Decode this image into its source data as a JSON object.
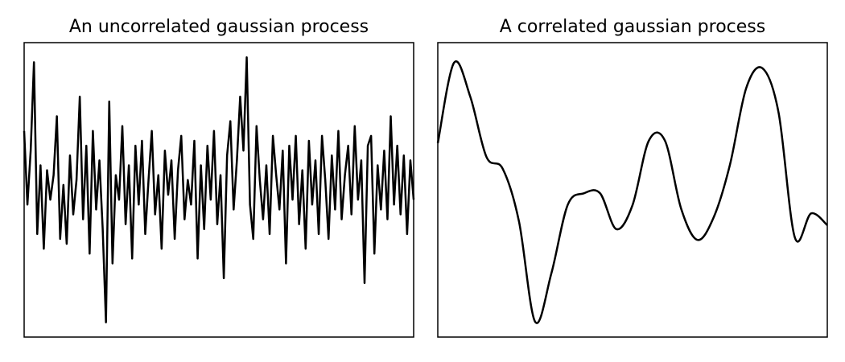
{
  "chart_data": [
    {
      "type": "line",
      "title": "An uncorrelated gaussian process",
      "color": "#000000",
      "ylim": [
        -3,
        3
      ],
      "values": [
        1.2,
        -0.3,
        0.8,
        2.6,
        -0.9,
        0.5,
        -1.2,
        0.4,
        -0.2,
        0.3,
        1.5,
        -1.0,
        0.1,
        -1.1,
        0.7,
        -0.5,
        0.2,
        1.9,
        -0.6,
        0.9,
        -1.3,
        1.2,
        -0.4,
        0.6,
        -0.8,
        -2.7,
        1.8,
        -1.5,
        0.3,
        -0.2,
        1.3,
        -0.7,
        0.5,
        -1.4,
        0.9,
        -0.3,
        1.0,
        -0.9,
        0.2,
        1.2,
        -0.5,
        0.3,
        -1.2,
        0.8,
        -0.1,
        0.6,
        -1.0,
        0.4,
        1.1,
        -0.6,
        0.2,
        -0.3,
        1.0,
        -1.4,
        0.5,
        -0.8,
        0.9,
        -0.2,
        1.2,
        -0.7,
        0.3,
        -1.8,
        0.7,
        1.4,
        -0.4,
        0.6,
        1.9,
        0.8,
        2.7,
        -0.3,
        -1.0,
        1.3,
        0.2,
        -0.6,
        0.5,
        -0.9,
        1.1,
        0.3,
        -0.4,
        0.8,
        -1.5,
        0.9,
        -0.2,
        1.1,
        -0.7,
        0.4,
        -1.2,
        1.0,
        -0.3,
        0.6,
        -0.9,
        1.1,
        0.2,
        -1.0,
        0.7,
        -0.4,
        1.2,
        -0.6,
        0.3,
        0.9,
        -0.5,
        1.3,
        -0.2,
        0.6,
        -1.9,
        0.9,
        1.1,
        -1.3,
        0.5,
        -0.4,
        0.8,
        -0.6,
        1.5,
        -0.3,
        0.9,
        -0.5,
        0.7,
        -0.9,
        0.6,
        -0.2
      ]
    },
    {
      "type": "smooth",
      "title": "A correlated gaussian process",
      "color": "#000000",
      "ylim": [
        -3,
        3
      ],
      "values": [
        0.95,
        2.59,
        1.9,
        0.67,
        0.43,
        -0.64,
        -2.69,
        -1.7,
        -0.31,
        -0.07,
        -0.07,
        -0.8,
        -0.31,
        1.0,
        1.0,
        -0.39,
        -1.02,
        -0.56,
        0.51,
        2.07,
        2.48,
        1.57,
        -0.97,
        -0.48,
        -0.72
      ]
    }
  ]
}
